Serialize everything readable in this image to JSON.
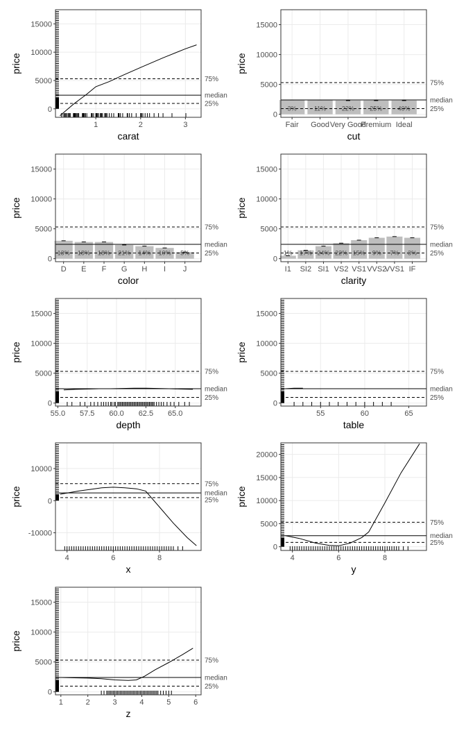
{
  "chart_data": [
    {
      "type": "line",
      "xlabel": "carat",
      "ylabel": "price",
      "xlim": [
        0.1,
        3.35
      ],
      "ylim": [
        -1500,
        17500
      ],
      "xticks": [
        "1",
        "2",
        "3"
      ],
      "xtick_values": [
        1,
        2,
        3
      ],
      "yticks": [
        "0",
        "5000",
        "10000",
        "15000"
      ],
      "ytick_values": [
        0,
        5000,
        10000,
        15000
      ],
      "x": [
        0.2,
        0.35,
        0.5,
        0.65,
        0.8,
        1.0,
        1.3,
        1.6,
        2.0,
        2.5,
        3.0,
        3.25
      ],
      "y": [
        -1200,
        -200,
        800,
        1700,
        2600,
        3900,
        4800,
        5900,
        7300,
        9000,
        10600,
        11300
      ],
      "reference_lines": {
        "median": 2400,
        "p25": 950,
        "p75": 5300
      },
      "ref_labels": {
        "median": "median",
        "p25": "25%",
        "p75": "75%"
      },
      "rug_x": [
        0.23,
        0.27,
        0.3,
        0.31,
        0.33,
        0.35,
        0.38,
        0.4,
        0.41,
        0.43,
        0.5,
        0.51,
        0.52,
        0.53,
        0.54,
        0.56,
        0.58,
        0.6,
        0.62,
        0.7,
        0.71,
        0.72,
        0.73,
        0.75,
        0.77,
        0.8,
        0.9,
        0.91,
        0.92,
        0.95,
        1.0,
        1.01,
        1.02,
        1.04,
        1.06,
        1.1,
        1.11,
        1.13,
        1.15,
        1.2,
        1.21,
        1.23,
        1.25,
        1.3,
        1.35,
        1.4,
        1.5,
        1.51,
        1.52,
        1.55,
        1.6,
        1.7,
        1.71,
        1.75,
        1.8,
        1.9,
        2.0,
        2.01,
        2.02,
        2.05,
        2.1,
        2.15,
        2.2,
        2.3,
        2.4,
        2.5,
        2.7,
        3.01
      ],
      "rug_y": true
    },
    {
      "type": "bar",
      "xlabel": "cut",
      "ylabel": "price",
      "ylim": [
        -500,
        17500
      ],
      "yticks": [
        "0",
        "5000",
        "10000",
        "15000"
      ],
      "ytick_values": [
        0,
        5000,
        10000,
        15000
      ],
      "categories": [
        "Fair",
        "Good",
        "Very Good",
        "Premium",
        "Ideal"
      ],
      "values": [
        2400,
        2400,
        2300,
        2300,
        2300
      ],
      "bar_labels": [
        "3%",
        "11%",
        "22%",
        "25%",
        "40%"
      ],
      "reference_lines": {
        "median": 2400,
        "p25": 950,
        "p75": 5300
      },
      "ref_labels": {
        "median": "median",
        "p25": "25%",
        "p75": "75%"
      }
    },
    {
      "type": "bar",
      "xlabel": "color",
      "ylabel": "price",
      "ylim": [
        -500,
        17500
      ],
      "yticks": [
        "0",
        "5000",
        "10000",
        "15000"
      ],
      "ytick_values": [
        0,
        5000,
        10000,
        15000
      ],
      "categories": [
        "D",
        "E",
        "F",
        "G",
        "H",
        "I",
        "J"
      ],
      "values": [
        3000,
        2800,
        2800,
        2300,
        2100,
        1800,
        1100
      ],
      "bar_labels": [
        "13%",
        "18%",
        "18%",
        "21%",
        "14%",
        "10%",
        "5%"
      ],
      "reference_lines": {
        "median": 2400,
        "p25": 950,
        "p75": 5300
      },
      "ref_labels": {
        "median": "median",
        "p25": "25%",
        "p75": "75%"
      }
    },
    {
      "type": "bar",
      "xlabel": "clarity",
      "ylabel": "price",
      "ylim": [
        -500,
        17500
      ],
      "yticks": [
        "0",
        "5000",
        "10000",
        "15000"
      ],
      "ytick_values": [
        0,
        5000,
        10000,
        15000
      ],
      "categories": [
        "I1",
        "SI2",
        "SI1",
        "VS2",
        "VS1",
        "VVS2",
        "VVS1",
        "IF"
      ],
      "values": [
        500,
        1400,
        2100,
        2600,
        3100,
        3500,
        3700,
        3500
      ],
      "bar_labels": [
        "1%",
        "17%",
        "24%",
        "22%",
        "15%",
        "9%",
        "7%",
        "3%"
      ],
      "reference_lines": {
        "median": 2400,
        "p25": 950,
        "p75": 5300
      },
      "ref_labels": {
        "median": "median",
        "p25": "25%",
        "p75": "75%"
      }
    },
    {
      "type": "line",
      "xlabel": "depth",
      "ylabel": "price",
      "xlim": [
        54.8,
        67.2
      ],
      "ylim": [
        -500,
        17500
      ],
      "xticks": [
        "55.0",
        "57.5",
        "60.0",
        "62.5",
        "65.0"
      ],
      "xtick_values": [
        55.0,
        57.5,
        60.0,
        62.5,
        65.0
      ],
      "yticks": [
        "0",
        "5000",
        "10000",
        "15000"
      ],
      "ytick_values": [
        0,
        5000,
        10000,
        15000
      ],
      "x": [
        55.5,
        56.5,
        57.5,
        58.5,
        59.5,
        60.5,
        61.5,
        62.5,
        63.5,
        64.5,
        65.5,
        66.5
      ],
      "y": [
        2200,
        2300,
        2350,
        2400,
        2400,
        2450,
        2500,
        2500,
        2450,
        2400,
        2350,
        2300
      ],
      "reference_lines": {
        "median": 2400,
        "p25": 950,
        "p75": 5300
      },
      "ref_labels": {
        "median": "median",
        "p25": "25%",
        "p75": "75%"
      },
      "rug_x": [
        55.8,
        56.2,
        56.9,
        57.3,
        57.8,
        58.1,
        58.4,
        58.7,
        58.9,
        59.1,
        59.3,
        59.5,
        59.6,
        59.8,
        59.9,
        60.1,
        60.2,
        60.3,
        60.4,
        60.5,
        60.6,
        60.7,
        60.8,
        60.9,
        61.0,
        61.1,
        61.2,
        61.3,
        61.4,
        61.5,
        61.6,
        61.7,
        61.8,
        61.9,
        62.0,
        62.1,
        62.2,
        62.3,
        62.4,
        62.5,
        62.6,
        62.7,
        62.8,
        62.9,
        63.0,
        63.1,
        63.2,
        63.4,
        63.6,
        63.8,
        64.0,
        64.3,
        64.6,
        64.9,
        65.3,
        65.8,
        66.2
      ],
      "rug_y": true
    },
    {
      "type": "line",
      "xlabel": "table",
      "ylabel": "price",
      "xlim": [
        50.5,
        67.0
      ],
      "ylim": [
        -500,
        17500
      ],
      "xticks": [
        "55",
        "60",
        "65"
      ],
      "xtick_values": [
        55,
        60,
        65
      ],
      "yticks": [
        "0",
        "5000",
        "10000",
        "15000"
      ],
      "ytick_values": [
        0,
        5000,
        10000,
        15000
      ],
      "x": [
        51,
        52,
        53
      ],
      "y": [
        2400,
        2500,
        2500
      ],
      "reference_lines": {
        "median": 2400,
        "p25": 950,
        "p75": 5300
      },
      "ref_labels": {
        "median": "median",
        "p25": "25%",
        "p75": "75%"
      },
      "rug_x": [
        52,
        53,
        54,
        55,
        56,
        57,
        58,
        59,
        60,
        61,
        62,
        63
      ],
      "rug_bold": true,
      "rug_y": true
    },
    {
      "type": "line",
      "xlabel": "x",
      "ylabel": "price",
      "xlim": [
        3.5,
        9.8
      ],
      "ylim": [
        -15500,
        18000
      ],
      "xticks": [
        "4",
        "6",
        "8"
      ],
      "xtick_values": [
        4,
        6,
        8
      ],
      "yticks": [
        "-10000",
        "0",
        "10000"
      ],
      "ytick_values": [
        -10000,
        0,
        10000
      ],
      "x": [
        3.7,
        4.5,
        5.0,
        5.5,
        6.0,
        6.5,
        7.0,
        7.4,
        8.0,
        8.6,
        9.2,
        9.6
      ],
      "y": [
        2000,
        3000,
        3500,
        4000,
        4200,
        4000,
        3700,
        3000,
        -2000,
        -7000,
        -11500,
        -14000
      ],
      "reference_lines": {
        "median": 2400,
        "p25": 950,
        "p75": 5300
      },
      "ref_labels": {
        "median": "median",
        "p25": "25%",
        "p75": "75%"
      },
      "rug_x": [
        3.9,
        4.0,
        4.1,
        4.2,
        4.3,
        4.4,
        4.5,
        4.6,
        4.7,
        4.8,
        4.9,
        5.0,
        5.1,
        5.2,
        5.3,
        5.4,
        5.5,
        5.6,
        5.7,
        5.8,
        5.9,
        6.0,
        6.1,
        6.2,
        6.3,
        6.4,
        6.5,
        6.6,
        6.7,
        6.8,
        6.9,
        7.0,
        7.1,
        7.2,
        7.3,
        7.4,
        7.5,
        7.6,
        7.7,
        7.8,
        7.9,
        8.0,
        8.1,
        8.2,
        8.3,
        8.4,
        8.5,
        8.6,
        8.8,
        9.0
      ],
      "rug_y": true
    },
    {
      "type": "line",
      "xlabel": "y",
      "ylabel": "price",
      "xlim": [
        3.5,
        9.8
      ],
      "ylim": [
        -800,
        22500
      ],
      "xticks": [
        "4",
        "6",
        "8"
      ],
      "xtick_values": [
        4,
        6,
        8
      ],
      "yticks": [
        "0",
        "5000",
        "10000",
        "15000",
        "20000"
      ],
      "ytick_values": [
        0,
        5000,
        10000,
        15000,
        20000
      ],
      "x": [
        3.7,
        4.3,
        5.0,
        5.6,
        6.0,
        6.5,
        7.0,
        7.3,
        8.0,
        8.7,
        9.5
      ],
      "y": [
        2400,
        1800,
        800,
        300,
        200,
        800,
        2000,
        3200,
        9500,
        16000,
        22300
      ],
      "reference_lines": {
        "median": 2400,
        "p25": 950,
        "p75": 5300
      },
      "ref_labels": {
        "median": "median",
        "p25": "25%",
        "p75": "75%"
      },
      "rug_x": [
        3.9,
        4.0,
        4.1,
        4.2,
        4.3,
        4.4,
        4.5,
        4.6,
        4.7,
        4.8,
        4.9,
        5.0,
        5.1,
        5.2,
        5.3,
        5.4,
        5.5,
        5.6,
        5.7,
        5.8,
        5.9,
        6.0,
        6.1,
        6.2,
        6.3,
        6.4,
        6.5,
        6.6,
        6.7,
        6.8,
        6.9,
        7.0,
        7.1,
        7.2,
        7.3,
        7.4,
        7.5,
        7.6,
        7.7,
        7.8,
        7.9,
        8.0,
        8.1,
        8.2,
        8.3,
        8.4,
        8.5,
        8.6,
        8.8,
        9.0
      ],
      "rug_y": true
    },
    {
      "type": "line",
      "xlabel": "z",
      "ylabel": "price",
      "xlim": [
        0.8,
        6.2
      ],
      "ylim": [
        -500,
        17500
      ],
      "xticks": [
        "1",
        "2",
        "3",
        "4",
        "5",
        "6"
      ],
      "xtick_values": [
        1,
        2,
        3,
        4,
        5,
        6
      ],
      "yticks": [
        "0",
        "5000",
        "10000",
        "15000"
      ],
      "ytick_values": [
        0,
        5000,
        10000,
        15000
      ],
      "x": [
        1.0,
        1.5,
        2.0,
        2.5,
        3.0,
        3.5,
        3.8,
        4.1,
        4.5,
        5.0,
        5.5,
        5.9
      ],
      "y": [
        2400,
        2350,
        2300,
        2200,
        2000,
        1900,
        2000,
        2600,
        3700,
        4900,
        6200,
        7300
      ],
      "reference_lines": {
        "median": 2400,
        "p25": 950,
        "p75": 5300
      },
      "ref_labels": {
        "median": "median",
        "p25": "25%",
        "p75": "75%"
      },
      "rug_x": [
        2.5,
        2.6,
        2.7,
        2.75,
        2.8,
        2.85,
        2.9,
        2.95,
        3.0,
        3.05,
        3.1,
        3.15,
        3.2,
        3.25,
        3.3,
        3.35,
        3.4,
        3.45,
        3.5,
        3.55,
        3.6,
        3.65,
        3.7,
        3.75,
        3.8,
        3.85,
        3.9,
        3.95,
        4.0,
        4.05,
        4.1,
        4.15,
        4.2,
        4.25,
        4.3,
        4.35,
        4.4,
        4.45,
        4.5,
        4.55,
        4.6,
        4.7,
        4.8,
        4.9,
        5.0,
        5.1
      ],
      "rug_y": true
    }
  ]
}
